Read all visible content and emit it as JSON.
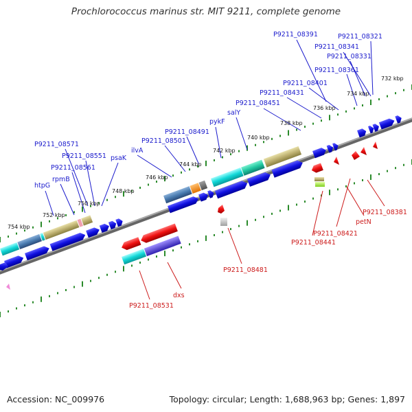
{
  "title": "Prochlorococcus marinus str. MIT 9211, complete genome",
  "accession": "Accession: NC_009976",
  "topology": "Topology: circular; Length: 1,688,963 bp; Genes: 1,897",
  "colors": {
    "forward_label": "#1a1acc",
    "reverse_label": "#cc1a1a",
    "backbone": "#888888",
    "tick": "#2a8a2a"
  },
  "kbp_ticks": [
    "732 kbp",
    "734 kbp",
    "736 kbp",
    "738 kbp",
    "740 kbp",
    "742 kbp",
    "744 kbp",
    "746 kbp",
    "748 kbp",
    "750 kbp",
    "752 kbp",
    "754 kbp"
  ],
  "forward_labels": [
    "P9211_08391",
    "P9211_08321",
    "P9211_08341",
    "P9211_08331",
    "P9211_08361",
    "P9211_08401",
    "P9211_08431",
    "P9211_08451",
    "salY",
    "pykF",
    "P9211_08491",
    "P9211_08501",
    "ilvA",
    "P9211_08571",
    "P9211_08551",
    "psaK",
    "P9211_08561",
    "rpmB",
    "htpG"
  ],
  "reverse_labels": [
    "P9211_08381",
    "petN",
    "P9211_08421",
    "P9211_08441",
    "P9211_08481",
    "dxs",
    "P9211_08531"
  ]
}
